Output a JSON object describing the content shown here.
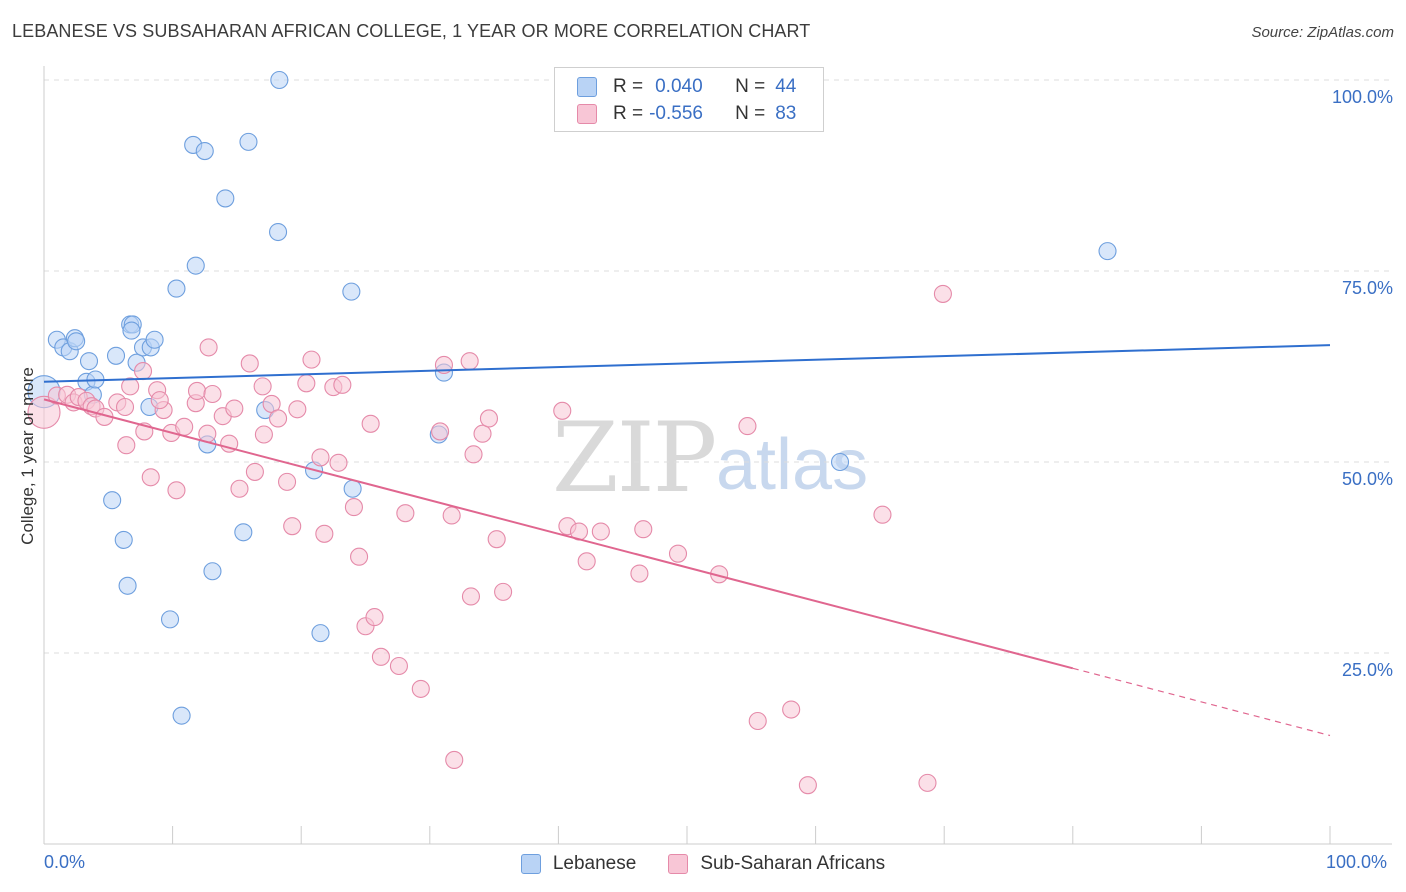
{
  "header": {
    "title": "LEBANESE VS SUBSAHARAN AFRICAN COLLEGE, 1 YEAR OR MORE CORRELATION CHART",
    "source": "Source: ZipAtlas.com"
  },
  "watermark": {
    "zip": "ZIP",
    "atlas": "atlas"
  },
  "legend": {
    "rows": [
      {
        "r_label": "R =",
        "r_value": "0.040",
        "n_label": "N =",
        "n_value": "44",
        "color": "#7aaaf0"
      },
      {
        "r_label": "R =",
        "r_value": "-0.556",
        "n_label": "N =",
        "n_value": "83",
        "color": "#f4a6c0"
      }
    ]
  },
  "bottom_legend": {
    "items": [
      "Lebanese",
      "Sub-Saharan Africans"
    ]
  },
  "axes": {
    "ylabel": "College, 1 year or more",
    "x_tick_left": "0.0%",
    "x_tick_right": "100.0%",
    "y_ticks": [
      "100.0%",
      "75.0%",
      "50.0%",
      "25.0%"
    ]
  },
  "colors": {
    "blue_fill": "#b9d3f5",
    "blue_stroke": "#6e9fde",
    "blue_line": "#2f6fcf",
    "pink_fill": "#f8c6d6",
    "pink_stroke": "#e58aa9",
    "pink_line": "#e0668f",
    "grid": "#dddddd",
    "axis_text": "#3a6fc4"
  },
  "chart_data": {
    "type": "scatter",
    "title": "LEBANESE VS SUBSAHARAN AFRICAN COLLEGE, 1 YEAR OR MORE CORRELATION CHART",
    "xlabel": "",
    "ylabel": "College, 1 year or more",
    "xlim": [
      0,
      100
    ],
    "ylim": [
      0,
      100
    ],
    "grid": true,
    "legend_position": "top-center",
    "series": [
      {
        "name": "Lebanese",
        "R": 0.04,
        "N": 44,
        "trend": {
          "x": [
            0,
            100
          ],
          "y": [
            60.5,
            65.3
          ]
        },
        "points": [
          [
            0.0,
            59.2
          ],
          [
            1.0,
            66.0
          ],
          [
            1.5,
            65.0
          ],
          [
            2.0,
            64.5
          ],
          [
            2.4,
            66.2
          ],
          [
            2.5,
            65.8
          ],
          [
            3.3,
            60.5
          ],
          [
            3.5,
            63.2
          ],
          [
            3.8,
            58.8
          ],
          [
            4.0,
            60.8
          ],
          [
            6.7,
            68.0
          ],
          [
            6.9,
            68.0
          ],
          [
            5.6,
            63.9
          ],
          [
            5.3,
            45.0
          ],
          [
            6.2,
            39.8
          ],
          [
            6.5,
            33.8
          ],
          [
            6.8,
            67.2
          ],
          [
            7.2,
            63.0
          ],
          [
            7.7,
            65.0
          ],
          [
            8.3,
            65.0
          ],
          [
            8.6,
            66.0
          ],
          [
            8.2,
            57.2
          ],
          [
            9.8,
            29.4
          ],
          [
            10.3,
            72.7
          ],
          [
            10.7,
            16.8
          ],
          [
            11.6,
            91.5
          ],
          [
            11.8,
            75.7
          ],
          [
            12.5,
            90.7
          ],
          [
            12.7,
            52.3
          ],
          [
            13.1,
            35.7
          ],
          [
            14.1,
            84.5
          ],
          [
            15.5,
            40.8
          ],
          [
            15.9,
            91.9
          ],
          [
            17.2,
            56.8
          ],
          [
            18.2,
            80.1
          ],
          [
            18.3,
            100.0
          ],
          [
            21.0,
            48.9
          ],
          [
            21.5,
            27.6
          ],
          [
            23.9,
            72.3
          ],
          [
            24.0,
            46.5
          ],
          [
            30.7,
            53.6
          ],
          [
            31.1,
            61.7
          ],
          [
            61.9,
            50.0
          ],
          [
            82.7,
            77.6
          ]
        ]
      },
      {
        "name": "Sub-Saharan Africans",
        "R": -0.556,
        "N": 83,
        "trend": {
          "x": [
            0,
            80
          ],
          "y": [
            58.2,
            23.0
          ]
        },
        "trend_dashed": {
          "x": [
            80,
            100
          ],
          "y": [
            23.0,
            14.2
          ]
        },
        "points": [
          [
            0.0,
            56.5
          ],
          [
            1.0,
            58.7
          ],
          [
            1.8,
            58.8
          ],
          [
            2.3,
            57.8
          ],
          [
            2.7,
            58.5
          ],
          [
            3.3,
            58.0
          ],
          [
            3.7,
            57.3
          ],
          [
            4.0,
            57.0
          ],
          [
            4.7,
            55.9
          ],
          [
            5.7,
            57.8
          ],
          [
            6.3,
            57.2
          ],
          [
            6.4,
            52.2
          ],
          [
            6.7,
            59.9
          ],
          [
            7.7,
            61.9
          ],
          [
            7.8,
            54.0
          ],
          [
            8.3,
            48.0
          ],
          [
            8.8,
            59.4
          ],
          [
            9.3,
            56.8
          ],
          [
            9.9,
            53.8
          ],
          [
            10.3,
            46.3
          ],
          [
            10.9,
            54.6
          ],
          [
            11.8,
            57.7
          ],
          [
            11.9,
            59.3
          ],
          [
            12.7,
            53.7
          ],
          [
            12.8,
            65.0
          ],
          [
            13.1,
            58.9
          ],
          [
            13.9,
            56.0
          ],
          [
            14.4,
            52.4
          ],
          [
            14.8,
            57.0
          ],
          [
            15.2,
            46.5
          ],
          [
            16.0,
            62.9
          ],
          [
            16.4,
            48.7
          ],
          [
            17.0,
            59.9
          ],
          [
            17.1,
            53.6
          ],
          [
            17.7,
            57.6
          ],
          [
            18.2,
            55.7
          ],
          [
            18.9,
            47.4
          ],
          [
            19.3,
            41.6
          ],
          [
            19.7,
            56.9
          ],
          [
            20.4,
            60.3
          ],
          [
            20.8,
            63.4
          ],
          [
            21.5,
            50.6
          ],
          [
            21.8,
            40.6
          ],
          [
            22.5,
            59.8
          ],
          [
            22.9,
            49.9
          ],
          [
            23.2,
            60.1
          ],
          [
            24.1,
            44.1
          ],
          [
            24.5,
            37.6
          ],
          [
            25.0,
            28.5
          ],
          [
            25.4,
            55.0
          ],
          [
            25.7,
            29.7
          ],
          [
            26.2,
            24.5
          ],
          [
            27.6,
            23.3
          ],
          [
            28.1,
            43.3
          ],
          [
            29.3,
            20.3
          ],
          [
            30.8,
            54.0
          ],
          [
            31.1,
            62.7
          ],
          [
            31.7,
            43.0
          ],
          [
            31.9,
            11.0
          ],
          [
            33.1,
            63.2
          ],
          [
            33.2,
            32.4
          ],
          [
            33.4,
            51.0
          ],
          [
            34.1,
            53.7
          ],
          [
            34.6,
            55.7
          ],
          [
            35.2,
            39.9
          ],
          [
            35.7,
            33.0
          ],
          [
            40.3,
            56.7
          ],
          [
            40.7,
            41.6
          ],
          [
            41.6,
            40.9
          ],
          [
            42.2,
            37.0
          ],
          [
            43.3,
            40.9
          ],
          [
            46.3,
            35.4
          ],
          [
            46.6,
            41.2
          ],
          [
            49.3,
            38.0
          ],
          [
            52.5,
            35.3
          ],
          [
            54.7,
            54.7
          ],
          [
            55.5,
            16.1
          ],
          [
            58.1,
            17.6
          ],
          [
            59.4,
            7.7
          ],
          [
            65.2,
            43.1
          ],
          [
            68.7,
            8.0
          ],
          [
            69.9,
            72.0
          ],
          [
            9.0,
            58.1
          ]
        ]
      }
    ]
  }
}
